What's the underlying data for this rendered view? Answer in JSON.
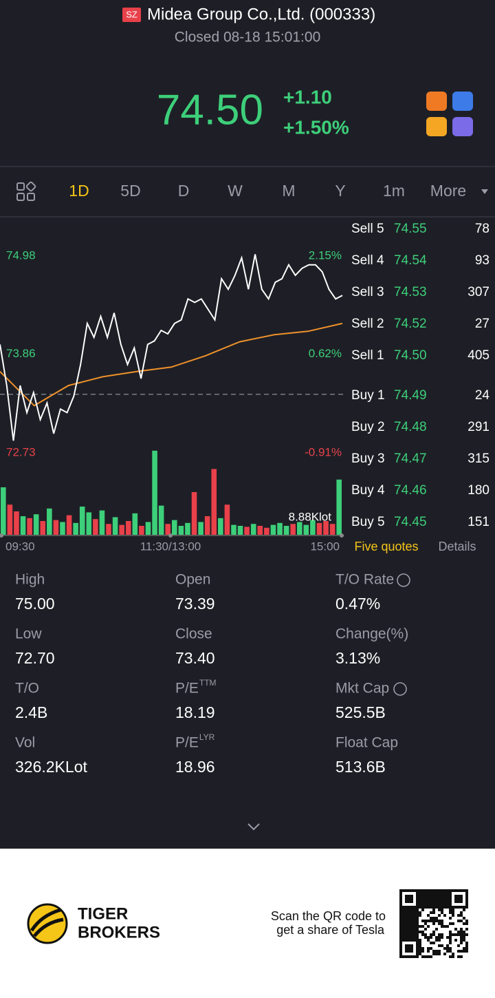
{
  "header": {
    "exchange": "SZ",
    "title": "Midea Group Co.,Ltd. (000333)",
    "status": "Closed 08-18 15:01:00"
  },
  "quote": {
    "price": "74.50",
    "change": "+1.10",
    "change_pct": "+1.50%"
  },
  "tabs": [
    "1D",
    "5D",
    "D",
    "W",
    "M",
    "Y",
    "1m",
    "More"
  ],
  "chart": {
    "type": "line",
    "ylim": [
      72.73,
      74.98
    ],
    "yticks": [
      74.98,
      73.86,
      72.73
    ],
    "pct_labels": [
      "2.15%",
      "0.62%",
      "-0.91%"
    ],
    "prev_close": 73.4,
    "price": [
      73.97,
      73.5,
      72.87,
      73.5,
      73.19,
      73.42,
      73.11,
      73.3,
      72.95,
      73.23,
      73.19,
      73.38,
      73.74,
      74.21,
      74.05,
      74.29,
      74.05,
      74.33,
      73.97,
      73.74,
      73.93,
      73.58,
      73.97,
      74.01,
      74.13,
      74.09,
      74.21,
      74.25,
      74.49,
      74.45,
      74.49,
      74.37,
      74.25,
      74.72,
      74.6,
      74.76,
      74.96,
      74.6,
      75.0,
      74.6,
      74.49,
      74.68,
      74.72,
      74.88,
      74.76,
      74.84,
      74.88,
      74.88,
      74.8,
      74.6,
      74.49,
      74.53
    ],
    "average": [
      73.66,
      73.27,
      73.5,
      73.6,
      73.66,
      73.71,
      73.84,
      74.0,
      74.08,
      74.12,
      74.21
    ],
    "volume": [
      5.0,
      3.2,
      2.5,
      2.0,
      1.8,
      2.2,
      1.5,
      2.8,
      1.6,
      1.4,
      2.1,
      1.3,
      3.0,
      2.4,
      1.7,
      2.6,
      1.2,
      1.9,
      1.1,
      1.5,
      2.3,
      1.0,
      1.4,
      8.8,
      3.1,
      1.2,
      1.6,
      1.0,
      1.3,
      4.5,
      1.4,
      2.0,
      6.9,
      1.8,
      3.2,
      1.1,
      1.0,
      0.9,
      1.2,
      1.0,
      0.8,
      1.1,
      1.3,
      1.0,
      1.2,
      1.4,
      1.1,
      1.6,
      1.3,
      1.5,
      1.2,
      5.8
    ],
    "vlim": [
      0,
      10
    ],
    "volume_label": "8.88Klot",
    "times": [
      "09:30",
      "11:30/13:00",
      "15:00"
    ]
  },
  "order_book": {
    "sell": [
      {
        "label": "Sell 5",
        "price": "74.55",
        "qty": "78"
      },
      {
        "label": "Sell 4",
        "price": "74.54",
        "qty": "93"
      },
      {
        "label": "Sell 3",
        "price": "74.53",
        "qty": "307"
      },
      {
        "label": "Sell 2",
        "price": "74.52",
        "qty": "27"
      },
      {
        "label": "Sell 1",
        "price": "74.50",
        "qty": "405"
      }
    ],
    "buy": [
      {
        "label": "Buy 1",
        "price": "74.49",
        "qty": "24"
      },
      {
        "label": "Buy 2",
        "price": "74.48",
        "qty": "291"
      },
      {
        "label": "Buy 3",
        "price": "74.47",
        "qty": "315"
      },
      {
        "label": "Buy 4",
        "price": "74.46",
        "qty": "180"
      },
      {
        "label": "Buy 5",
        "price": "74.45",
        "qty": "151"
      }
    ],
    "tabs": [
      "Five quotes",
      "Details"
    ]
  },
  "stats": [
    {
      "label": "High",
      "value": "75.00"
    },
    {
      "label": "Open",
      "value": "73.39"
    },
    {
      "label": "T/O Rate",
      "value": "0.47%"
    },
    {
      "label": "Low",
      "value": "72.70"
    },
    {
      "label": "Close",
      "value": "73.40"
    },
    {
      "label": "Change(%)",
      "value": "3.13%"
    },
    {
      "label": "T/O",
      "value": "2.4B"
    },
    {
      "label": "P/E",
      "sup": "TTM",
      "value": "18.19"
    },
    {
      "label": "Mkt Cap",
      "value": "525.5B"
    },
    {
      "label": "Vol",
      "value": "326.2KLot"
    },
    {
      "label": "P/E",
      "sup": "LYR",
      "value": "18.96"
    },
    {
      "label": "Float Cap",
      "value": "513.6B"
    }
  ],
  "footer": {
    "brand": [
      "TIGER",
      "BROKERS"
    ],
    "promo": [
      "Scan the QR code to",
      "get a share of Tesla"
    ]
  }
}
